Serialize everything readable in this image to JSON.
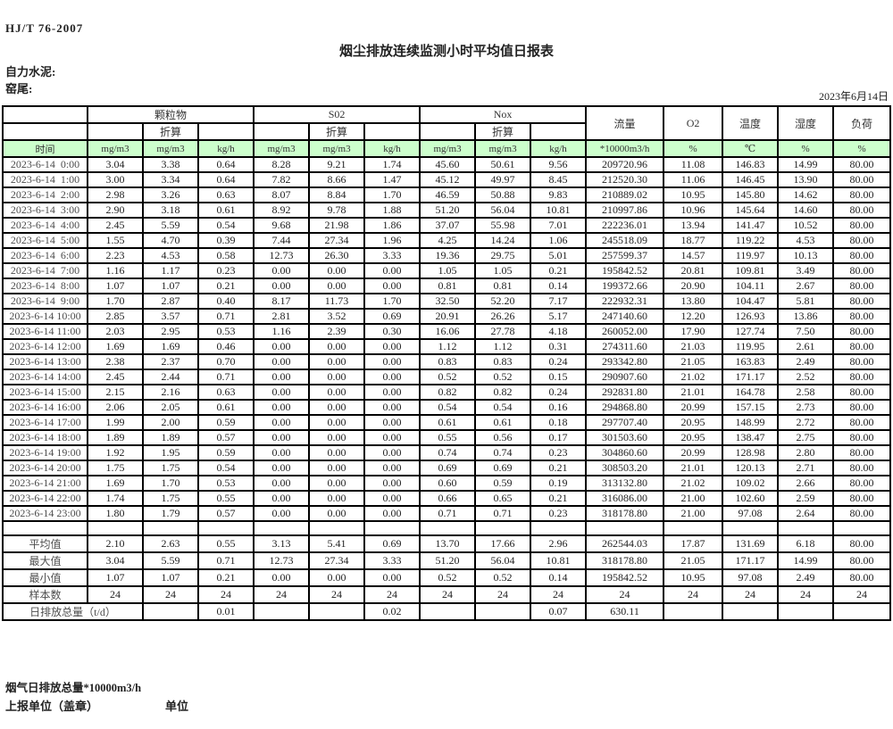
{
  "meta": {
    "standard_no": "HJ/T  76-2007",
    "title": "烟尘排放连续监测小时平均值日报表",
    "company": "自力水泥:",
    "location": "窑尾:",
    "date": "2023年6月14日"
  },
  "header": {
    "time_label": "时间",
    "groups": {
      "pm": "颗粒物",
      "so2": "S02",
      "nox": "Nox",
      "converted": "折算",
      "flow": "流量",
      "o2": "O2",
      "temperature": "温度",
      "humidity": "湿度",
      "load": "负荷"
    },
    "units": {
      "mg_m3": "mg/m3",
      "kg_h": "kg/h",
      "flow": "*10000m3/h",
      "percent": "%",
      "celsius": "℃"
    }
  },
  "table": {
    "rows": [
      [
        "2023-6-14  0:00",
        "3.04",
        "3.38",
        "0.64",
        "8.28",
        "9.21",
        "1.74",
        "45.60",
        "50.61",
        "9.56",
        "209720.96",
        "11.08",
        "146.83",
        "14.99",
        "80.00"
      ],
      [
        "2023-6-14  1:00",
        "3.00",
        "3.34",
        "0.64",
        "7.82",
        "8.66",
        "1.47",
        "45.12",
        "49.97",
        "8.45",
        "212520.30",
        "11.06",
        "146.45",
        "13.90",
        "80.00"
      ],
      [
        "2023-6-14  2:00",
        "2.98",
        "3.26",
        "0.63",
        "8.07",
        "8.84",
        "1.70",
        "46.59",
        "50.88",
        "9.83",
        "210889.02",
        "10.95",
        "145.80",
        "14.62",
        "80.00"
      ],
      [
        "2023-6-14  3:00",
        "2.90",
        "3.18",
        "0.61",
        "8.92",
        "9.78",
        "1.88",
        "51.20",
        "56.04",
        "10.81",
        "210997.86",
        "10.96",
        "145.64",
        "14.60",
        "80.00"
      ],
      [
        "2023-6-14  4:00",
        "2.45",
        "5.59",
        "0.54",
        "9.68",
        "21.98",
        "1.86",
        "37.07",
        "55.98",
        "7.01",
        "222236.01",
        "13.94",
        "141.47",
        "10.52",
        "80.00"
      ],
      [
        "2023-6-14  5:00",
        "1.55",
        "4.70",
        "0.39",
        "7.44",
        "27.34",
        "1.96",
        "4.25",
        "14.24",
        "1.06",
        "245518.09",
        "18.77",
        "119.22",
        "4.53",
        "80.00"
      ],
      [
        "2023-6-14  6:00",
        "2.23",
        "4.53",
        "0.58",
        "12.73",
        "26.30",
        "3.33",
        "19.36",
        "29.75",
        "5.01",
        "257599.37",
        "14.57",
        "119.97",
        "10.13",
        "80.00"
      ],
      [
        "2023-6-14  7:00",
        "1.16",
        "1.17",
        "0.23",
        "0.00",
        "0.00",
        "0.00",
        "1.05",
        "1.05",
        "0.21",
        "195842.52",
        "20.81",
        "109.81",
        "3.49",
        "80.00"
      ],
      [
        "2023-6-14  8:00",
        "1.07",
        "1.07",
        "0.21",
        "0.00",
        "0.00",
        "0.00",
        "0.81",
        "0.81",
        "0.14",
        "199372.66",
        "20.90",
        "104.11",
        "2.67",
        "80.00"
      ],
      [
        "2023-6-14  9:00",
        "1.70",
        "2.87",
        "0.40",
        "8.17",
        "11.73",
        "1.70",
        "32.50",
        "52.20",
        "7.17",
        "222932.31",
        "13.80",
        "104.47",
        "5.81",
        "80.00"
      ],
      [
        "2023-6-14 10:00",
        "2.85",
        "3.57",
        "0.71",
        "2.81",
        "3.52",
        "0.69",
        "20.91",
        "26.26",
        "5.17",
        "247140.60",
        "12.20",
        "126.93",
        "13.86",
        "80.00"
      ],
      [
        "2023-6-14 11:00",
        "2.03",
        "2.95",
        "0.53",
        "1.16",
        "2.39",
        "0.30",
        "16.06",
        "27.78",
        "4.18",
        "260052.00",
        "17.90",
        "127.74",
        "7.50",
        "80.00"
      ],
      [
        "2023-6-14 12:00",
        "1.69",
        "1.69",
        "0.46",
        "0.00",
        "0.00",
        "0.00",
        "1.12",
        "1.12",
        "0.31",
        "274311.60",
        "21.03",
        "119.95",
        "2.61",
        "80.00"
      ],
      [
        "2023-6-14 13:00",
        "2.38",
        "2.37",
        "0.70",
        "0.00",
        "0.00",
        "0.00",
        "0.83",
        "0.83",
        "0.24",
        "293342.80",
        "21.05",
        "163.83",
        "2.49",
        "80.00"
      ],
      [
        "2023-6-14 14:00",
        "2.45",
        "2.44",
        "0.71",
        "0.00",
        "0.00",
        "0.00",
        "0.52",
        "0.52",
        "0.15",
        "290907.60",
        "21.02",
        "171.17",
        "2.52",
        "80.00"
      ],
      [
        "2023-6-14 15:00",
        "2.15",
        "2.16",
        "0.63",
        "0.00",
        "0.00",
        "0.00",
        "0.82",
        "0.82",
        "0.24",
        "292831.80",
        "21.01",
        "164.78",
        "2.58",
        "80.00"
      ],
      [
        "2023-6-14 16:00",
        "2.06",
        "2.05",
        "0.61",
        "0.00",
        "0.00",
        "0.00",
        "0.54",
        "0.54",
        "0.16",
        "294868.80",
        "20.99",
        "157.15",
        "2.73",
        "80.00"
      ],
      [
        "2023-6-14 17:00",
        "1.99",
        "2.00",
        "0.59",
        "0.00",
        "0.00",
        "0.00",
        "0.61",
        "0.61",
        "0.18",
        "297707.40",
        "20.95",
        "148.99",
        "2.72",
        "80.00"
      ],
      [
        "2023-6-14 18:00",
        "1.89",
        "1.89",
        "0.57",
        "0.00",
        "0.00",
        "0.00",
        "0.55",
        "0.56",
        "0.17",
        "301503.60",
        "20.95",
        "138.47",
        "2.75",
        "80.00"
      ],
      [
        "2023-6-14 19:00",
        "1.92",
        "1.95",
        "0.59",
        "0.00",
        "0.00",
        "0.00",
        "0.74",
        "0.74",
        "0.23",
        "304860.60",
        "20.99",
        "128.98",
        "2.80",
        "80.00"
      ],
      [
        "2023-6-14 20:00",
        "1.75",
        "1.75",
        "0.54",
        "0.00",
        "0.00",
        "0.00",
        "0.69",
        "0.69",
        "0.21",
        "308503.20",
        "21.01",
        "120.13",
        "2.71",
        "80.00"
      ],
      [
        "2023-6-14 21:00",
        "1.69",
        "1.70",
        "0.53",
        "0.00",
        "0.00",
        "0.00",
        "0.60",
        "0.59",
        "0.19",
        "313132.80",
        "21.02",
        "109.02",
        "2.66",
        "80.00"
      ],
      [
        "2023-6-14 22:00",
        "1.74",
        "1.75",
        "0.55",
        "0.00",
        "0.00",
        "0.00",
        "0.66",
        "0.65",
        "0.21",
        "316086.00",
        "21.00",
        "102.60",
        "2.59",
        "80.00"
      ],
      [
        "2023-6-14 23:00",
        "1.80",
        "1.79",
        "0.57",
        "0.00",
        "0.00",
        "0.00",
        "0.71",
        "0.71",
        "0.23",
        "318178.80",
        "21.00",
        "97.08",
        "2.64",
        "80.00"
      ]
    ],
    "summary": [
      [
        "平均值",
        "2.10",
        "2.63",
        "0.55",
        "3.13",
        "5.41",
        "0.69",
        "13.70",
        "17.66",
        "2.96",
        "262544.03",
        "17.87",
        "131.69",
        "6.18",
        "80.00"
      ],
      [
        "最大值",
        "3.04",
        "5.59",
        "0.71",
        "12.73",
        "27.34",
        "3.33",
        "51.20",
        "56.04",
        "10.81",
        "318178.80",
        "21.05",
        "171.17",
        "14.99",
        "80.00"
      ],
      [
        "最小值",
        "1.07",
        "1.07",
        "0.21",
        "0.00",
        "0.00",
        "0.00",
        "0.52",
        "0.52",
        "0.14",
        "195842.52",
        "10.95",
        "97.08",
        "2.49",
        "80.00"
      ],
      [
        "样本数",
        "24",
        "24",
        "24",
        "24",
        "24",
        "24",
        "24",
        "24",
        "24",
        "24",
        "24",
        "24",
        "24",
        "24"
      ]
    ],
    "total": {
      "label": "日排放总量（t/d）",
      "pm_kg_h": "0.01",
      "so2_kg_h": "0.02",
      "nox_kg_h": "0.07",
      "flow": "630.11"
    }
  },
  "footer": {
    "flue_total": "烟气日排放总量*10000m3/h",
    "report_unit": "上报单位（盖章）",
    "unit": "单位"
  },
  "colors": {
    "header_green": "#ccffcc",
    "border": "#000000",
    "background": "#ffffff"
  }
}
